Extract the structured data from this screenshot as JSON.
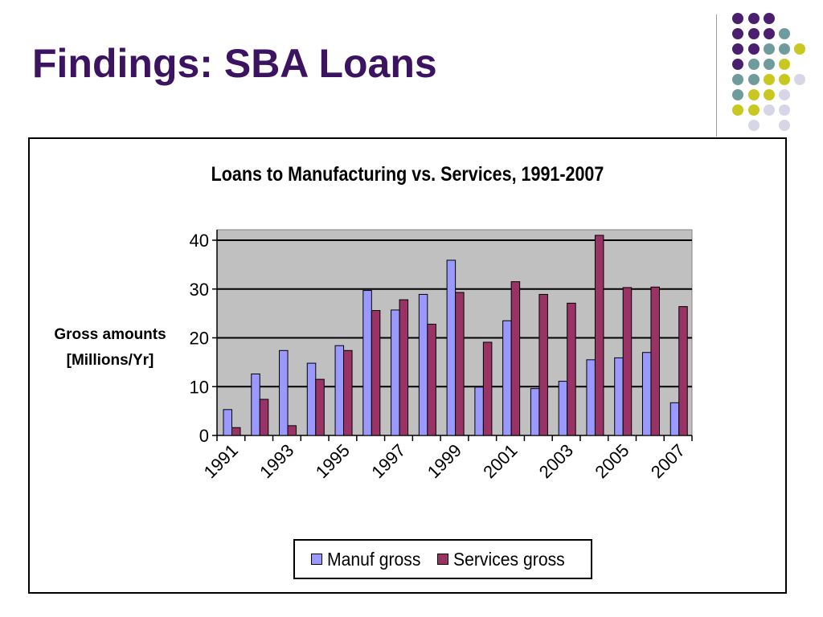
{
  "slide": {
    "title": "Findings: SBA Loans",
    "accent_colors": [
      "#4b1f6f",
      "#6e9c9c",
      "#c8c820",
      "#d7d6e6"
    ]
  },
  "chart_data": {
    "type": "bar",
    "title": "Loans to Manufacturing vs. Services, 1991-2007",
    "ylabel_lines": [
      "Gross amounts",
      "[Millions/Yr]"
    ],
    "xlabel": "",
    "categories": [
      "1991",
      "1992",
      "1993",
      "1994",
      "1995",
      "1996",
      "1997",
      "1998",
      "1999",
      "2000",
      "2001",
      "2002",
      "2003",
      "2004",
      "2005",
      "2006",
      "2007"
    ],
    "x_tick_labels": [
      "1991",
      "1993",
      "1995",
      "1997",
      "1999",
      "2001",
      "2003",
      "2005",
      "2007"
    ],
    "series": [
      {
        "name": "Manuf gross",
        "color": "#9999ff",
        "values": [
          5.3,
          12.6,
          17.4,
          14.8,
          18.4,
          29.7,
          25.7,
          28.9,
          35.9,
          9.9,
          23.5,
          9.6,
          11.1,
          15.5,
          15.9,
          17.0,
          6.7
        ]
      },
      {
        "name": "Services gross",
        "color": "#993366",
        "values": [
          1.6,
          7.4,
          2.0,
          11.5,
          17.4,
          25.6,
          27.8,
          22.8,
          29.3,
          19.1,
          31.5,
          28.9,
          27.1,
          41.0,
          30.3,
          30.4,
          26.4
        ]
      }
    ],
    "ylim": [
      0,
      40
    ],
    "yticks": [
      0,
      10,
      20,
      30,
      40
    ],
    "grid": true,
    "plot_background": "#c0c0c0",
    "legend_position": "bottom"
  }
}
